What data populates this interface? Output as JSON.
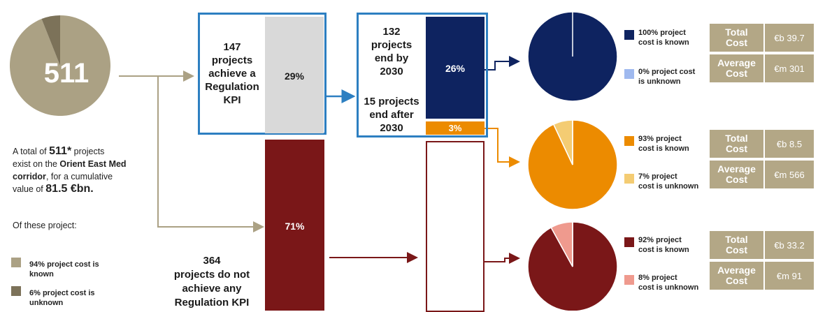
{
  "colors": {
    "tan": "#aba184",
    "tan_dark": "#7c7259",
    "blue_frame": "#2d7fc1",
    "navy": "#0e2360",
    "light_blue": "#9fb9ef",
    "orange": "#ec8b00",
    "light_orange": "#f4cc73",
    "maroon": "#7a1718",
    "pink": "#ef9a8e",
    "gray_bar": "#d9d9d9",
    "stat_bg": "#b3a786"
  },
  "total_projects": "511",
  "description": {
    "line1_pre": "A total of ",
    "line1_bold": "511*",
    "line1_post": " projects",
    "line2_pre": "exist on the ",
    "line2_bold": "Orient East Med",
    "line3_bold": "corridor",
    "line3_post": ", for a cumulative",
    "line4_pre": "value of ",
    "line4_bold": "81.5 €bn.",
    "of_these": "Of these project:"
  },
  "left_legend": [
    {
      "text1": "94% project cost is",
      "text2": "known"
    },
    {
      "text1": "6% project cost is",
      "text2": "unknown"
    }
  ],
  "box_achieve": {
    "lines": [
      "147",
      "projects",
      "achieve a",
      "Regulation",
      "KPI"
    ],
    "pct": "29%"
  },
  "box_end": {
    "lines_by": [
      "132",
      "projects",
      "end by",
      "2030"
    ],
    "lines_after": [
      "15 projects",
      "end after",
      "2030"
    ],
    "pct_by": "26%",
    "pct_after": "3%"
  },
  "not_achieve": {
    "lines": [
      "364",
      "projects do not",
      "achieve any",
      "Regulation KPI"
    ],
    "pct": "71%"
  },
  "pie_groups": [
    {
      "legend": [
        {
          "text1": "100% project",
          "text2": "cost is known"
        },
        {
          "text1": "0% project cost",
          "text2": "is unknown"
        }
      ],
      "stats": [
        {
          "label1": "Total",
          "label2": "Cost",
          "value": "€b 39.7"
        },
        {
          "label1": "Average",
          "label2": "Cost",
          "value": "€m 301"
        }
      ]
    },
    {
      "legend": [
        {
          "text1": "93% project",
          "text2": "cost is known"
        },
        {
          "text1": "7% project",
          "text2": "cost is unknown"
        }
      ],
      "stats": [
        {
          "label1": "Total",
          "label2": "Cost",
          "value": "€b 8.5"
        },
        {
          "label1": "Average",
          "label2": "Cost",
          "value": "€m 566"
        }
      ]
    },
    {
      "legend": [
        {
          "text1": "92% project",
          "text2": "cost is known"
        },
        {
          "text1": "8% project",
          "text2": "cost is unknown"
        }
      ],
      "stats": [
        {
          "label1": "Total",
          "label2": "Cost",
          "value": "€b 33.2"
        },
        {
          "label1": "Average",
          "label2": "Cost",
          "value": "€m 91"
        }
      ]
    }
  ],
  "chart_data": [
    {
      "type": "pie",
      "slices": [
        {
          "label": "project cost is known",
          "value": 94
        },
        {
          "label": "project cost is unknown",
          "value": 6
        }
      ]
    },
    {
      "type": "bar",
      "categories": [
        "achieve a Regulation KPI",
        "do not achieve any Regulation KPI"
      ],
      "values": [
        29,
        71
      ]
    },
    {
      "type": "bar",
      "categories": [
        "end by 2030",
        "end after 2030"
      ],
      "values": [
        26,
        3
      ]
    },
    {
      "type": "pie",
      "slices": [
        {
          "label": "project cost is known",
          "value": 100
        },
        {
          "label": "project cost is unknown",
          "value": 0
        }
      ]
    },
    {
      "type": "pie",
      "slices": [
        {
          "label": "project cost is known",
          "value": 93
        },
        {
          "label": "project cost is unknown",
          "value": 7
        }
      ]
    },
    {
      "type": "pie",
      "slices": [
        {
          "label": "project cost is known",
          "value": 92
        },
        {
          "label": "project cost is unknown",
          "value": 8
        }
      ]
    }
  ]
}
